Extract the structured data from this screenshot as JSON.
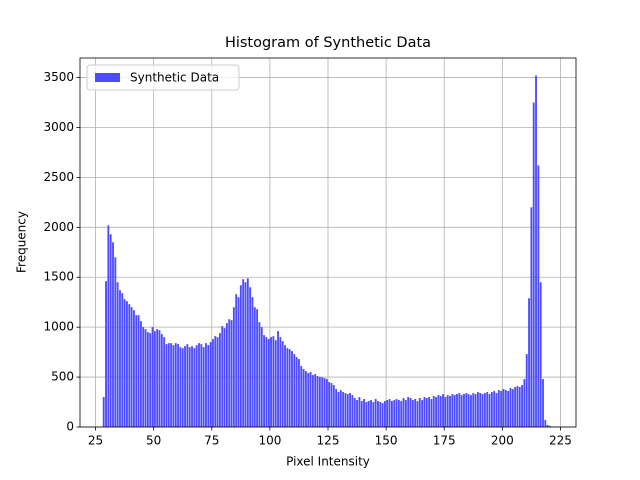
{
  "chart_data": {
    "type": "histogram",
    "title": "Histogram of Synthetic Data",
    "x_label": "Pixel Intensity",
    "y_label": "Frequency",
    "bins": [
      28,
      29,
      30,
      31,
      32,
      33,
      34,
      35,
      36,
      37,
      38,
      39,
      40,
      41,
      42,
      43,
      44,
      45,
      46,
      47,
      48,
      49,
      50,
      51,
      52,
      53,
      54,
      55,
      56,
      57,
      58,
      59,
      60,
      61,
      62,
      63,
      64,
      65,
      66,
      67,
      68,
      69,
      70,
      71,
      72,
      73,
      74,
      75,
      76,
      77,
      78,
      79,
      80,
      81,
      82,
      83,
      84,
      85,
      86,
      87,
      88,
      89,
      90,
      91,
      92,
      93,
      94,
      95,
      96,
      97,
      98,
      99,
      100,
      101,
      102,
      103,
      104,
      105,
      106,
      107,
      108,
      109,
      110,
      111,
      112,
      113,
      114,
      115,
      116,
      117,
      118,
      119,
      120,
      121,
      122,
      123,
      124,
      125,
      126,
      127,
      128,
      129,
      130,
      131,
      132,
      133,
      134,
      135,
      136,
      137,
      138,
      139,
      140,
      141,
      142,
      143,
      144,
      145,
      146,
      147,
      148,
      149,
      150,
      151,
      152,
      153,
      154,
      155,
      156,
      157,
      158,
      159,
      160,
      161,
      162,
      163,
      164,
      165,
      166,
      167,
      168,
      169,
      170,
      171,
      172,
      173,
      174,
      175,
      176,
      177,
      178,
      179,
      180,
      181,
      182,
      183,
      184,
      185,
      186,
      187,
      188,
      189,
      190,
      191,
      192,
      193,
      194,
      195,
      196,
      197,
      198,
      199,
      200,
      201,
      202,
      203,
      204,
      205,
      206,
      207,
      208,
      209,
      210,
      211,
      212,
      213,
      214,
      215,
      216,
      217,
      218,
      219,
      220,
      221,
      222
    ],
    "series": [
      {
        "name": "Synthetic Data",
        "color": "#4d4dff",
        "values": [
          300,
          1460,
          2020,
          1930,
          1850,
          1700,
          1450,
          1370,
          1340,
          1280,
          1260,
          1230,
          1200,
          1170,
          1120,
          1120,
          1060,
          1000,
          980,
          950,
          940,
          1000,
          960,
          980,
          970,
          930,
          900,
          830,
          840,
          840,
          820,
          840,
          830,
          800,
          790,
          810,
          830,
          800,
          810,
          790,
          820,
          840,
          830,
          800,
          840,
          820,
          850,
          880,
          910,
          900,
          940,
          1010,
          990,
          1040,
          1080,
          1070,
          1200,
          1330,
          1300,
          1420,
          1480,
          1450,
          1490,
          1400,
          1300,
          1200,
          1180,
          1050,
          1000,
          920,
          900,
          880,
          900,
          910,
          870,
          960,
          900,
          860,
          820,
          790,
          780,
          760,
          730,
          700,
          680,
          610,
          580,
          560,
          540,
          550,
          520,
          530,
          510,
          500,
          500,
          490,
          480,
          450,
          440,
          420,
          380,
          350,
          370,
          350,
          340,
          330,
          340,
          320,
          290,
          270,
          300,
          260,
          280,
          250,
          260,
          270,
          250,
          280,
          260,
          250,
          240,
          260,
          270,
          280,
          260,
          270,
          280,
          270,
          260,
          290,
          270,
          300,
          290,
          270,
          280,
          260,
          290,
          270,
          300,
          290,
          300,
          280,
          310,
          300,
          320,
          310,
          330,
          300,
          320,
          310,
          330,
          320,
          330,
          340,
          320,
          330,
          340,
          330,
          320,
          340,
          330,
          350,
          340,
          330,
          340,
          350,
          330,
          350,
          360,
          340,
          370,
          360,
          380,
          370,
          360,
          390,
          380,
          400,
          410,
          400,
          420,
          480,
          730,
          1290,
          2200,
          3250,
          3520,
          2620,
          1450,
          480,
          70,
          20,
          10,
          5
        ]
      }
    ],
    "xlim": [
      18.3,
      231.7
    ],
    "ylim": [
      0,
      3696
    ],
    "xticks": [
      25,
      50,
      75,
      100,
      125,
      150,
      175,
      200,
      225
    ],
    "yticks": [
      0,
      500,
      1000,
      1500,
      2000,
      2500,
      3000,
      3500
    ],
    "grid": true,
    "legend": "upper left"
  }
}
